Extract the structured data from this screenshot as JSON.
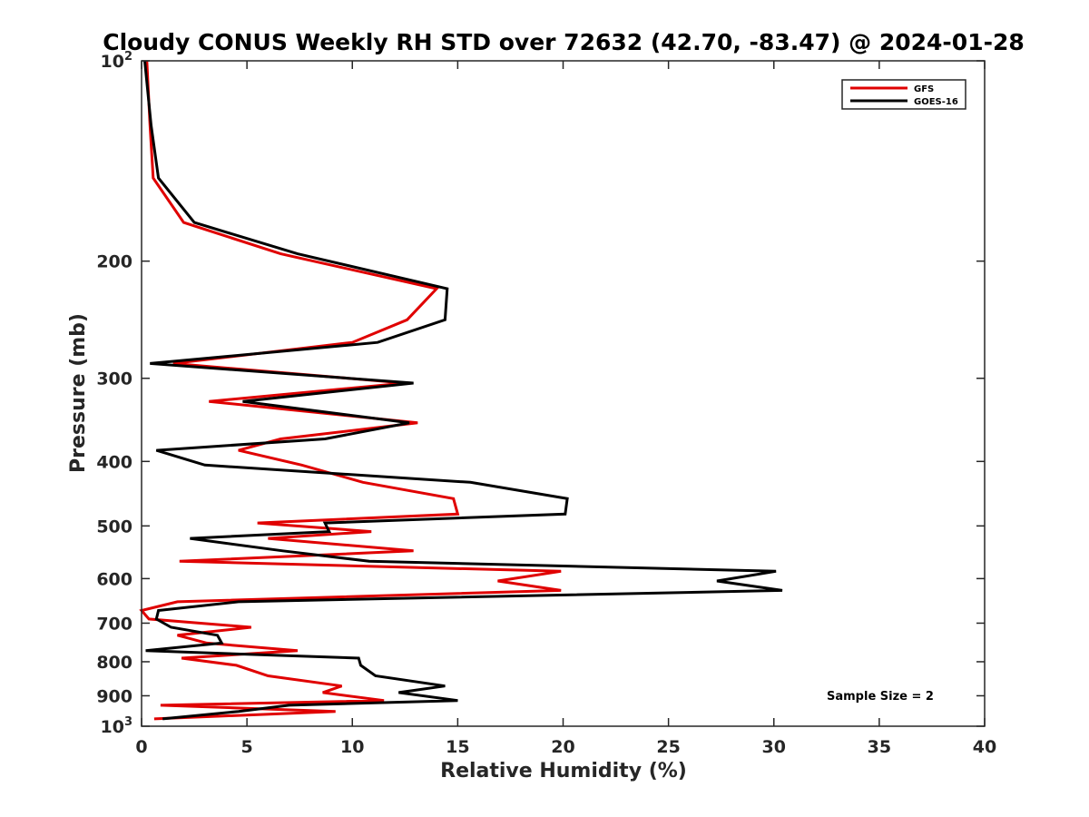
{
  "chart_data": {
    "type": "line",
    "title": "Cloudy CONUS Weekly RH STD over 72632 (42.70, -83.47) @ 2024-01-28",
    "xlabel": "Relative Humidity (%)",
    "ylabel": "Pressure (mb)",
    "xlim": [
      0,
      40
    ],
    "ylim": [
      1000,
      100
    ],
    "y_scale": "log",
    "y_reversed": true,
    "x_ticks": [
      0,
      5,
      10,
      15,
      20,
      25,
      30,
      35,
      40
    ],
    "x_tick_labels": [
      "0",
      "5",
      "10",
      "15",
      "20",
      "25",
      "30",
      "35",
      "40"
    ],
    "y_ticks": [
      100,
      200,
      300,
      400,
      500,
      600,
      700,
      800,
      900,
      1000
    ],
    "y_tick_labels": [
      {
        "base": "10",
        "exp": "2"
      },
      {
        "text": "200"
      },
      {
        "text": "300"
      },
      {
        "text": "400"
      },
      {
        "text": "500"
      },
      {
        "text": "600"
      },
      {
        "text": "700"
      },
      {
        "text": "800"
      },
      {
        "text": "900"
      },
      {
        "base": "10",
        "exp": "3"
      }
    ],
    "grid": false,
    "legend": "top-right",
    "annotation": "Sample Size = 2",
    "series": [
      {
        "name": "GFS",
        "color": "#e00000",
        "points": [
          [
            0.25,
            100
          ],
          [
            0.4,
            125
          ],
          [
            0.55,
            150
          ],
          [
            2.0,
            175
          ],
          [
            6.6,
            195
          ],
          [
            14.0,
            220
          ],
          [
            12.6,
            245
          ],
          [
            10.0,
            265
          ],
          [
            1.5,
            285
          ],
          [
            12.5,
            305
          ],
          [
            3.2,
            325
          ],
          [
            13.1,
            350
          ],
          [
            6.6,
            370
          ],
          [
            4.6,
            385
          ],
          [
            7.6,
            405
          ],
          [
            10.5,
            430
          ],
          [
            14.8,
            455
          ],
          [
            15.0,
            480
          ],
          [
            5.5,
            495
          ],
          [
            10.9,
            510
          ],
          [
            6.0,
            522
          ],
          [
            12.9,
            545
          ],
          [
            1.8,
            565
          ],
          [
            19.9,
            585
          ],
          [
            16.9,
            605
          ],
          [
            19.9,
            625
          ],
          [
            1.7,
            650
          ],
          [
            0.0,
            670
          ],
          [
            0.35,
            690
          ],
          [
            5.2,
            710
          ],
          [
            1.7,
            730
          ],
          [
            3.1,
            750
          ],
          [
            7.4,
            770
          ],
          [
            1.9,
            790
          ],
          [
            4.5,
            810
          ],
          [
            6.0,
            840
          ],
          [
            9.5,
            870
          ],
          [
            8.6,
            890
          ],
          [
            11.5,
            915
          ],
          [
            0.9,
            930
          ],
          [
            9.2,
            950
          ],
          [
            0.6,
            975
          ]
        ]
      },
      {
        "name": "GOES-16",
        "color": "#000000",
        "points": [
          [
            0.15,
            100
          ],
          [
            0.45,
            125
          ],
          [
            0.8,
            150
          ],
          [
            2.5,
            175
          ],
          [
            7.4,
            195
          ],
          [
            14.5,
            220
          ],
          [
            14.4,
            245
          ],
          [
            11.2,
            265
          ],
          [
            0.4,
            285
          ],
          [
            12.9,
            305
          ],
          [
            4.8,
            325
          ],
          [
            12.7,
            350
          ],
          [
            8.7,
            370
          ],
          [
            0.7,
            385
          ],
          [
            3.0,
            405
          ],
          [
            15.6,
            430
          ],
          [
            20.2,
            455
          ],
          [
            20.1,
            480
          ],
          [
            8.7,
            495
          ],
          [
            8.9,
            510
          ],
          [
            2.3,
            522
          ],
          [
            6.7,
            545
          ],
          [
            10.8,
            565
          ],
          [
            30.1,
            585
          ],
          [
            27.3,
            605
          ],
          [
            30.4,
            625
          ],
          [
            4.6,
            650
          ],
          [
            0.8,
            670
          ],
          [
            0.7,
            690
          ],
          [
            1.4,
            710
          ],
          [
            3.6,
            730
          ],
          [
            3.8,
            750
          ],
          [
            0.2,
            770
          ],
          [
            10.3,
            790
          ],
          [
            10.4,
            810
          ],
          [
            11.1,
            840
          ],
          [
            14.4,
            870
          ],
          [
            12.2,
            890
          ],
          [
            15.0,
            915
          ],
          [
            7.0,
            930
          ],
          [
            4.6,
            950
          ],
          [
            1.0,
            975
          ]
        ]
      }
    ]
  }
}
